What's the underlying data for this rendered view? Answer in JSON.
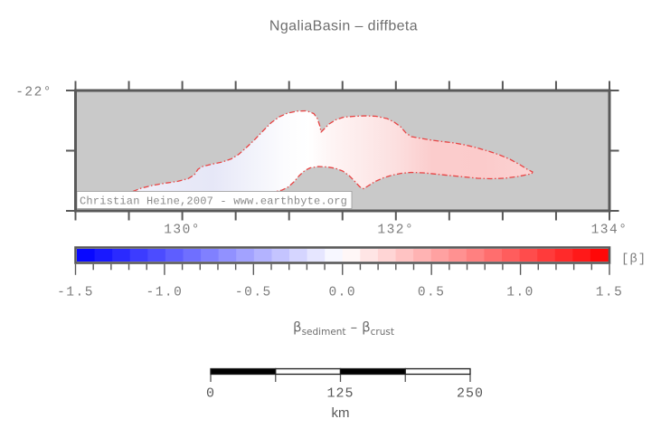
{
  "title": "NgaliaBasin – diffbeta",
  "map": {
    "lat_tick_label": "-22°",
    "lon_tick_labels": [
      "130°",
      "132°",
      "134°"
    ],
    "watermark": "Christian Heine,2007 - www.earthbyte.org",
    "background_color": "#c9c9c9",
    "frame_color": "#595959",
    "basin_outline_color": "#e84444",
    "basin_fill_stops": [
      [
        0.0,
        "#f1f1fa"
      ],
      [
        0.12,
        "#e8e9f7"
      ],
      [
        0.2,
        "#e6e7f7"
      ],
      [
        0.3,
        "#f2f3fb"
      ],
      [
        0.38,
        "#fcfcfe"
      ],
      [
        0.44,
        "#ffffff"
      ],
      [
        0.5,
        "#fef4f4"
      ],
      [
        0.58,
        "#fdeaea"
      ],
      [
        0.66,
        "#fcdfdf"
      ],
      [
        0.75,
        "#fbcccc"
      ],
      [
        0.88,
        "#fbcbcb"
      ],
      [
        1.0,
        "#fbd3d3"
      ]
    ]
  },
  "chart_data": {
    "type": "heatmap",
    "title": "NgaliaBasin – diffbeta",
    "description": "Outline map of the Ngalia Basin shaded by diffbeta (beta_sediment minus beta_crust); values grade from about -0.2 in the west through 0 to about +0.4 in the east.",
    "x_axis": {
      "tick_labels": [
        "130°",
        "132°",
        "134°"
      ],
      "minor_tick_interval_deg": 0.5
    },
    "y_axis": {
      "tick_labels": [
        "-22°"
      ],
      "minor_tick_interval_deg": 0.5
    },
    "colorbar": {
      "min": -1.5,
      "max": 1.5,
      "segment_step": 0.1,
      "tick_step": 0.1,
      "major_tick_step": 0.5,
      "labels": [
        "-1.5",
        "-1.0",
        "-0.5",
        "0.0",
        "0.5",
        "1.0",
        "1.5"
      ],
      "unit": "[β]",
      "colormap": "polar blue-white-red",
      "negative_color": "#0000ff",
      "zero_color": "#ffffff",
      "positive_color": "#ff0000"
    }
  },
  "quantity_label": {
    "beta": "β",
    "sediment": "sediment",
    "minus": "–",
    "crust": "crust"
  },
  "scalebar": {
    "labels": [
      "0",
      "125",
      "250"
    ],
    "tick_values_km": [
      0,
      62.5,
      125,
      187.5,
      250
    ],
    "length_km": 250,
    "unit": "km"
  }
}
